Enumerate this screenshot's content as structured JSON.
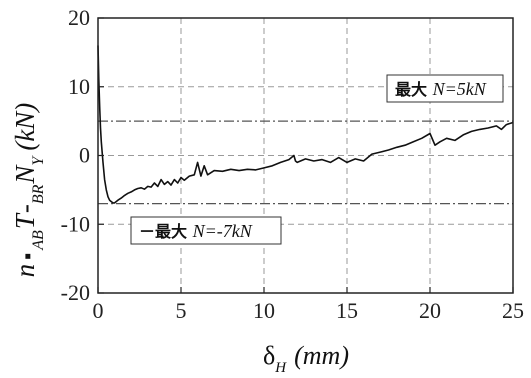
{
  "chart_data": {
    "type": "line",
    "title": "",
    "xlabel": "δH (mm)",
    "ylabel": "n·AB T - BR N Y (kN)",
    "xlim": [
      0,
      25
    ],
    "ylim": [
      -20,
      20
    ],
    "xticks": [
      0,
      5,
      10,
      15,
      20,
      25
    ],
    "yticks": [
      -20,
      -10,
      0,
      10,
      20
    ],
    "x_tick_labels": [
      "0",
      "5",
      "10",
      "15",
      "20",
      "25"
    ],
    "y_tick_labels": [
      "-20",
      "-10",
      "0",
      "10",
      "20"
    ],
    "grid": true,
    "reference_lines": [
      {
        "y": 5,
        "label_prefix": "最大",
        "label_var": "N",
        "label_value": "=5",
        "label_unit": "kN"
      },
      {
        "y": -7,
        "label_prefix": "－最大",
        "label_var": "N",
        "label_value": "=-7",
        "label_unit": "kN"
      }
    ],
    "series": [
      {
        "x": [
          0,
          0.05,
          0.1,
          0.15,
          0.2,
          0.3,
          0.4,
          0.5,
          0.6,
          0.7,
          0.8,
          0.9,
          1.0,
          1.2,
          1.4,
          1.6,
          1.8,
          2.0,
          2.2,
          2.4,
          2.6,
          2.8,
          3.0,
          3.2,
          3.4,
          3.6,
          3.8,
          4.0,
          4.2,
          4.4,
          4.6,
          4.8,
          5.0,
          5.2,
          5.5,
          5.8,
          6.0,
          6.2,
          6.4,
          6.6,
          6.8,
          7.0,
          7.5,
          8.0,
          8.5,
          9.0,
          9.5,
          10.0,
          10.5,
          11.0,
          11.5,
          11.8,
          11.9,
          12.0,
          12.5,
          13.0,
          13.5,
          14.0,
          14.5,
          15.0,
          15.5,
          16.0,
          16.5,
          17.0,
          17.5,
          18.0,
          18.5,
          19.0,
          19.5,
          20.0,
          20.3,
          20.6,
          21.0,
          21.5,
          22.0,
          22.5,
          23.0,
          23.5,
          24.0,
          24.3,
          24.6,
          25.0
        ],
        "y": [
          16,
          11,
          7,
          4,
          2,
          -1,
          -3.5,
          -5,
          -6,
          -6.5,
          -6.7,
          -6.9,
          -6.9,
          -6.5,
          -6.2,
          -5.8,
          -5.5,
          -5.3,
          -5.0,
          -4.8,
          -4.7,
          -4.9,
          -4.5,
          -4.6,
          -4.0,
          -4.5,
          -3.5,
          -4.2,
          -3.8,
          -4.3,
          -3.5,
          -4.0,
          -3.2,
          -3.6,
          -3.0,
          -2.8,
          -1.0,
          -3.0,
          -1.5,
          -2.8,
          -2.5,
          -2.2,
          -2.3,
          -2.0,
          -2.2,
          -2.0,
          -2.1,
          -1.8,
          -1.5,
          -1.0,
          -0.6,
          0,
          -0.8,
          -1.0,
          -0.5,
          -0.8,
          -0.6,
          -1.0,
          -0.3,
          -1.0,
          -0.5,
          -0.8,
          0.2,
          0.5,
          0.8,
          1.2,
          1.5,
          2.0,
          2.5,
          3.2,
          1.5,
          2.0,
          2.5,
          2.2,
          3.0,
          3.5,
          3.8,
          4.0,
          4.3,
          3.8,
          4.5,
          4.8
        ]
      }
    ]
  }
}
